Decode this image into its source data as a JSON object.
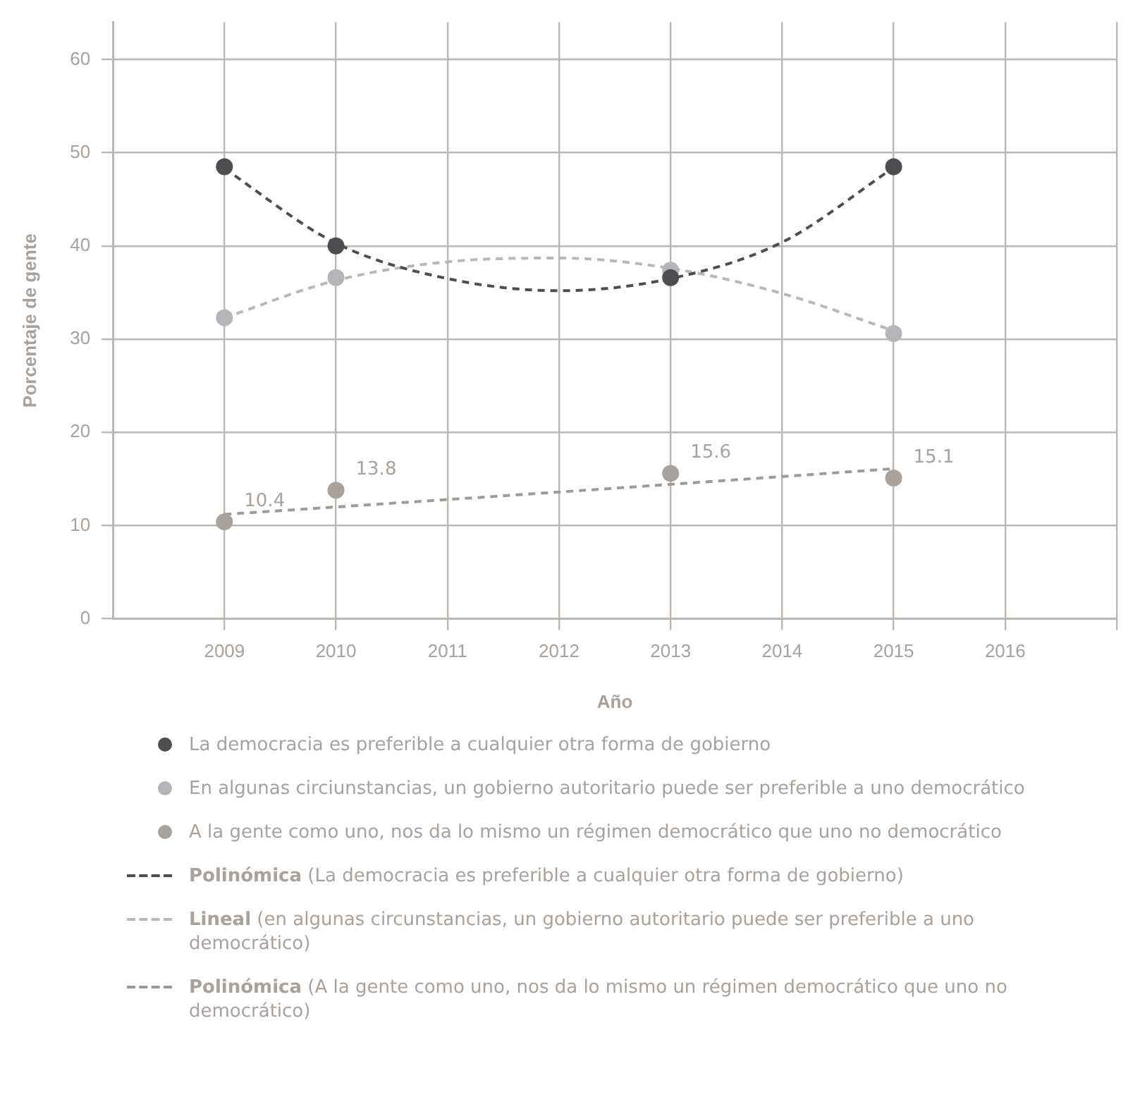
{
  "chart_data": {
    "type": "scatter",
    "xlabel": "Año",
    "ylabel": "Porcentaje de gente",
    "x": [
      2009,
      2010,
      2013,
      2015
    ],
    "xlim": [
      2008,
      2017
    ],
    "xticks": [
      2009,
      2010,
      2011,
      2012,
      2013,
      2014,
      2015,
      2016,
      {
        "value": 2017,
        "label": null
      }
    ],
    "ylim": [
      0,
      64
    ],
    "yticks": [
      0,
      10,
      20,
      30,
      40,
      50,
      60
    ],
    "grid": true,
    "legend": "bottom",
    "marker": "circle",
    "series": [
      {
        "name": "La democracia es preferible a cualquier otra forma de gobierno",
        "color": "#4d4e52",
        "values": [
          48.5,
          40,
          36.6,
          48.5
        ]
      },
      {
        "name": "En algunas circiunstancias, un gobierno autoritario puede ser preferible a uno democrático",
        "color": "#b4b4b9",
        "values": [
          32.3,
          36.6,
          37.4,
          30.6
        ]
      },
      {
        "name": "A la gente como uno, nos da lo mismo un régimen democrático que uno no democrático",
        "color": "#a8a19c",
        "values": [
          10.4,
          13.8,
          15.6,
          15.1
        ],
        "value_labels": [
          "10.4",
          "13.8",
          "15.6",
          "15.1"
        ]
      },
      {
        "name": "Polinómica (La democracia es preferible a cualquier otra forma de gobierno)",
        "type": "line",
        "line_style": "dashed",
        "marker": "none",
        "color": "#4d4e52",
        "x": [
          2009,
          2010,
          2011,
          2012,
          2013,
          2014,
          2015
        ],
        "values": [
          48.3,
          40.3,
          36.5,
          35.2,
          36.5,
          40.4,
          48.4
        ]
      },
      {
        "name": "Lineal (en algunas circunstancias, un gobierno autoritario puede ser preferible a uno democrático)",
        "type": "line",
        "line_style": "dashed",
        "marker": "none",
        "color": "#b8b8bc",
        "x": [
          2009,
          2010,
          2011,
          2012,
          2013,
          2014,
          2015
        ],
        "values": [
          32.3,
          36.3,
          38.3,
          38.7,
          37.6,
          34.9,
          30.9
        ]
      },
      {
        "name": "Polinómica (A la gente como uno, nos da lo mismo un régimen democrático que uno no democrático)",
        "type": "line",
        "line_style": "dashed",
        "marker": "none",
        "color": "#a09a95",
        "x": [
          2009,
          2012,
          2015
        ],
        "values": [
          11.2,
          13.6,
          16.1
        ]
      }
    ]
  }
}
